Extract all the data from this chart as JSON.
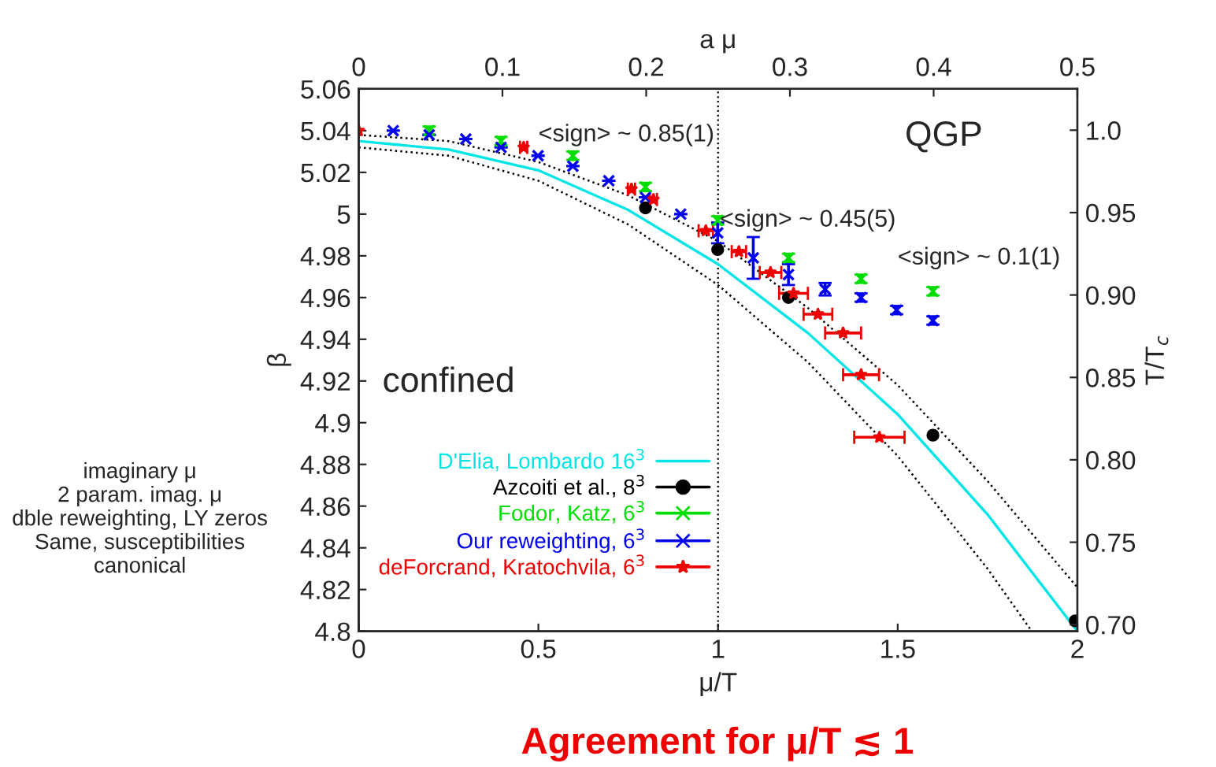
{
  "chart_data": {
    "type": "scatter",
    "xlabel": "μ/T",
    "ylabel": "β",
    "x2label": "a μ",
    "y2label": "T/T$_{c}$",
    "xlim": [
      0,
      2
    ],
    "xticks": [
      0,
      0.5,
      1,
      1.5,
      2
    ],
    "ylim": [
      4.8,
      5.06
    ],
    "yticks": [
      4.8,
      4.82,
      4.84,
      4.86,
      4.88,
      4.9,
      4.92,
      4.94,
      4.96,
      4.98,
      5,
      5.02,
      5.04,
      5.06
    ],
    "x2lim": [
      0,
      0.5
    ],
    "x2ticks": [
      0,
      0.1,
      0.2,
      0.3,
      0.4,
      0.5
    ],
    "y2lim": [
      0.696,
      1.025
    ],
    "y2ticks": [
      {
        "value": 0.7,
        "label": "0.70"
      },
      {
        "value": 0.75,
        "label": "0.75"
      },
      {
        "value": 0.8,
        "label": "0.80"
      },
      {
        "value": 0.85,
        "label": "0.85"
      },
      {
        "value": 0.9,
        "label": "0.90"
      },
      {
        "value": 0.95,
        "label": "0.95"
      },
      {
        "value": 1.0,
        "label": "1.0"
      }
    ],
    "grid": false,
    "legend": "bottom left",
    "series": [
      {
        "name": "D'Elia, Lombardo 16$^{3}$",
        "type": "line",
        "color": "#00e5e5",
        "line_style": "solid",
        "x": [
          0,
          0.25,
          0.5,
          0.75,
          1,
          1.25,
          1.5,
          1.75,
          2
        ],
        "values": [
          5.035,
          5.031,
          5.021,
          5.002,
          4.976,
          4.943,
          4.904,
          4.856,
          4.8
        ]
      },
      {
        "name": "Azcoiti et al., 8$^{3}$",
        "type": "scatter",
        "marker": "circle",
        "color": "#000000",
        "x": [
          0.798,
          0.999,
          1.196,
          1.598,
          1.994
        ],
        "values": [
          5.003,
          4.983,
          4.96,
          4.894,
          4.805
        ]
      },
      {
        "name": "Fodor, Katz, 6$^{3}$",
        "type": "scatter",
        "marker": "cross",
        "color": "#00dd00",
        "x": [
          0.196,
          0.396,
          0.596,
          0.798,
          0.999,
          1.196,
          1.398,
          1.598
        ],
        "values": [
          5.04,
          5.035,
          5.028,
          5.013,
          4.997,
          4.979,
          4.969,
          4.963
        ],
        "errors": [
          0.002,
          0.002,
          0.002,
          0.002,
          0.002,
          0.002,
          0.002,
          0.002
        ]
      },
      {
        "name": "Our reweighting, 6$^{3}$",
        "type": "scatter",
        "marker": "cross",
        "color": "#0000ee",
        "x": [
          0.096,
          0.196,
          0.298,
          0.396,
          0.499,
          0.596,
          0.696,
          0.798,
          0.896,
          0.999,
          1.098,
          1.196,
          1.298,
          1.398,
          1.497,
          1.598
        ],
        "values": [
          5.04,
          5.038,
          5.036,
          5.032,
          5.028,
          5.023,
          5.016,
          5.008,
          5.0,
          4.991,
          4.979,
          4.971,
          4.964,
          4.96,
          4.954,
          4.949
        ],
        "errors": [
          null,
          null,
          null,
          null,
          null,
          null,
          null,
          null,
          null,
          0.005,
          0.01,
          0.005,
          0.003,
          0.002,
          0.002,
          0.002
        ]
      },
      {
        "name": "deForcrand, Kratochvila, 6$^{3}$",
        "type": "scatter",
        "marker": "star",
        "color": "#ee0000",
        "x": [
          0,
          0.459,
          0.759,
          0.82,
          0.966,
          1.058,
          1.146,
          1.21,
          1.278,
          1.348,
          1.398,
          1.449
        ],
        "values": [
          5.04,
          5.032,
          5.012,
          5.007,
          4.992,
          4.982,
          4.972,
          4.962,
          4.952,
          4.943,
          4.923,
          4.893
        ],
        "xerrors": [
          null,
          0.01,
          0.01,
          0.01,
          0.02,
          0.02,
          0.03,
          0.04,
          0.04,
          0.05,
          0.05,
          0.07
        ]
      },
      {
        "type": "line",
        "color": "#000000",
        "line_style": "dotted",
        "x": [
          0,
          0.25,
          0.5,
          0.75,
          1,
          1.25,
          1.5,
          1.75,
          2
        ],
        "values": [
          5.038,
          5.035,
          5.025,
          5.009,
          4.987,
          4.955,
          4.918,
          4.872,
          4.821
        ]
      },
      {
        "type": "line",
        "color": "#000000",
        "line_style": "dotted",
        "x": [
          0,
          0.25,
          0.5,
          0.75,
          1,
          1.25,
          1.5,
          1.75,
          1.873
        ],
        "values": [
          5.032,
          5.028,
          5.016,
          4.995,
          4.966,
          4.929,
          4.884,
          4.83,
          4.8
        ]
      }
    ],
    "ref_lines": [
      {
        "axis": "x",
        "value": 1,
        "color": "#000000",
        "line_style": "dotted"
      }
    ],
    "annotations": [
      "<sign> ~ 0.85(1)",
      "<sign> ~ 0.1(1)",
      "QGP",
      "confined",
      {
        "text": "<sign> ~ 0.45(5)",
        "x": 1.005,
        "y": 4.997
      },
      "imaginary μ",
      "2 param. imag. μ",
      "dble reweighting, LY zeros",
      "Same, susceptibilities",
      "canonical",
      "Agreement for μ/T ≲ 1"
    ]
  }
}
